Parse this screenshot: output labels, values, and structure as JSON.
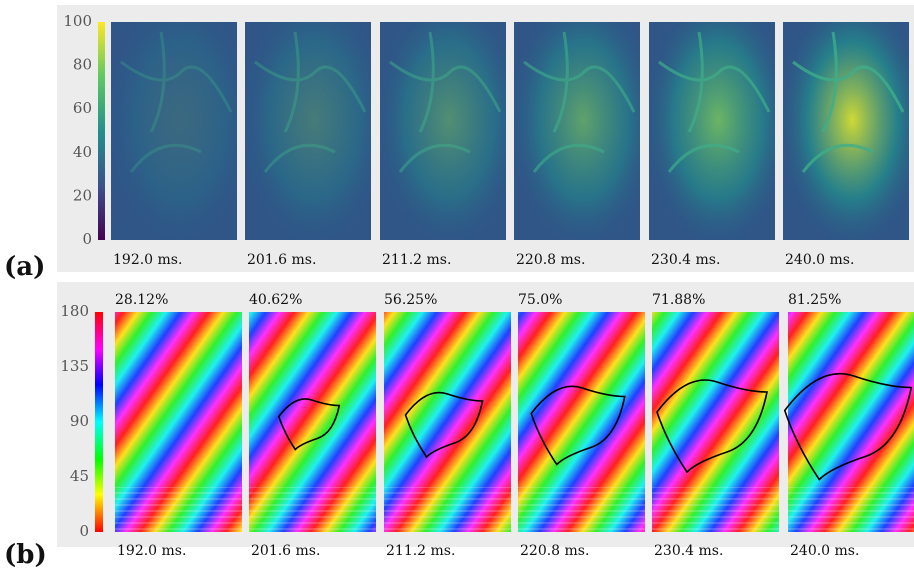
{
  "panels": [
    {
      "label": "(a)",
      "colorbar_ticks": [
        0,
        20,
        40,
        60,
        80,
        100
      ],
      "frames": [
        "192.0 ms.",
        "201.6 ms.",
        "211.2 ms.",
        "220.8 ms.",
        "230.4 ms.",
        "240.0 ms."
      ]
    },
    {
      "label": "(b)",
      "colorbar_ticks": [
        0,
        45,
        90,
        135,
        180
      ],
      "percentages": [
        "28.12%",
        "40.62%",
        "56.25%",
        "75.0%",
        "71.88%",
        "81.25%"
      ],
      "frames": [
        "192.0 ms.",
        "201.6 ms.",
        "211.2 ms.",
        "220.8 ms.",
        "230.4 ms.",
        "240.0 ms."
      ]
    }
  ]
}
